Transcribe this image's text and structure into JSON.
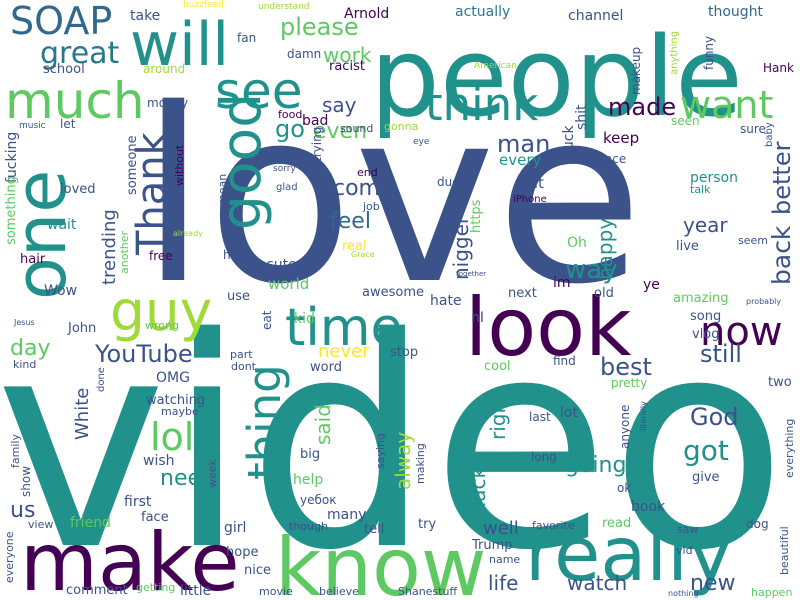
{
  "background": "#ffffff",
  "palette": {
    "purple": "#440154",
    "indigo": "#3b528b",
    "teal": "#21918c",
    "green": "#5ec962",
    "yellow": "#fde725"
  },
  "words": [
    {
      "text": "video",
      "weight": 100,
      "color": "#21918c"
    },
    {
      "text": "love",
      "weight": 92,
      "color": "#3b528b"
    },
    {
      "text": "people",
      "weight": 60,
      "color": "#21918c"
    },
    {
      "text": "make",
      "weight": 48,
      "color": "#440154"
    },
    {
      "text": "know",
      "weight": 46,
      "color": "#5ec962"
    },
    {
      "text": "really",
      "weight": 44,
      "color": "#21918c"
    },
    {
      "text": "look",
      "weight": 44,
      "color": "#440154"
    },
    {
      "text": "one",
      "weight": 42,
      "color": "#21918c"
    },
    {
      "text": "will",
      "weight": 38,
      "color": "#21918c"
    },
    {
      "text": "much",
      "weight": 36,
      "color": "#5ec962"
    },
    {
      "text": "time",
      "weight": 36,
      "color": "#21918c"
    },
    {
      "text": "good",
      "weight": 36,
      "color": "#21918c"
    },
    {
      "text": "see",
      "weight": 32,
      "color": "#21918c"
    },
    {
      "text": "guy",
      "weight": 32,
      "color": "#a0da39"
    },
    {
      "text": "now",
      "weight": 30,
      "color": "#440154"
    },
    {
      "text": "think",
      "weight": 28,
      "color": "#21918c"
    },
    {
      "text": "thing",
      "weight": 28,
      "color": "#21918c"
    },
    {
      "text": "Thank",
      "weight": 28,
      "color": "#3b528b"
    },
    {
      "text": "want",
      "weight": 26,
      "color": "#5ec962"
    },
    {
      "text": "SOAP",
      "weight": 24,
      "color": "#31688e"
    },
    {
      "text": "lol",
      "weight": 24,
      "color": "#5ec962"
    },
    {
      "text": "great",
      "weight": 20,
      "color": "#2a788e"
    },
    {
      "text": "back",
      "weight": 20,
      "color": "#3b528b"
    },
    {
      "text": "better",
      "weight": 20,
      "color": "#3b528b"
    },
    {
      "text": "YouTube",
      "weight": 18,
      "color": "#3b528b"
    },
    {
      "text": "best",
      "weight": 18,
      "color": "#3b528b"
    },
    {
      "text": "still",
      "weight": 18,
      "color": "#3b528b"
    },
    {
      "text": "way",
      "weight": 18,
      "color": "#21918c"
    },
    {
      "text": "please",
      "weight": 18,
      "color": "#5ec962"
    },
    {
      "text": "work",
      "weight": 16,
      "color": "#5ec962"
    },
    {
      "text": "feel",
      "weight": 18,
      "color": "#31688e"
    },
    {
      "text": "come",
      "weight": 18,
      "color": "#3b528b"
    },
    {
      "text": "made",
      "weight": 16,
      "color": "#440154"
    },
    {
      "text": "man",
      "weight": 16,
      "color": "#3b528b"
    },
    {
      "text": "go",
      "weight": 16,
      "color": "#21918c"
    },
    {
      "text": "say",
      "weight": 16,
      "color": "#3b528b"
    },
    {
      "text": "even",
      "weight": 16,
      "color": "#5ec962"
    },
    {
      "text": "God",
      "weight": 18,
      "color": "#3b528b"
    },
    {
      "text": "got",
      "weight": 20,
      "color": "#21918c"
    },
    {
      "text": "going",
      "weight": 18,
      "color": "#21918c"
    },
    {
      "text": "need",
      "weight": 18,
      "color": "#21918c"
    },
    {
      "text": "new",
      "weight": 18,
      "color": "#3b528b"
    },
    {
      "text": "life",
      "weight": 18,
      "color": "#3b528b"
    },
    {
      "text": "watch",
      "weight": 18,
      "color": "#3b528b"
    },
    {
      "text": "black",
      "weight": 16,
      "color": "#21918c"
    },
    {
      "text": "right",
      "weight": 16,
      "color": "#21918c"
    },
    {
      "text": "alway",
      "weight": 16,
      "color": "#a0da39"
    },
    {
      "text": "said",
      "weight": 16,
      "color": "#5ec962"
    },
    {
      "text": "nigger",
      "weight": 16,
      "color": "#3b528b"
    },
    {
      "text": "happy",
      "weight": 16,
      "color": "#21918c"
    },
    {
      "text": "year",
      "weight": 16,
      "color": "#3b528b"
    },
    {
      "text": "trending",
      "weight": 16,
      "color": "#3b528b"
    },
    {
      "text": "day",
      "weight": 16,
      "color": "#5ec962"
    },
    {
      "text": "us",
      "weight": 16,
      "color": "#3b528b"
    },
    {
      "text": "White",
      "weight": 14,
      "color": "#3b528b"
    },
    {
      "text": "well",
      "weight": 14,
      "color": "#3b528b"
    },
    {
      "text": "never",
      "weight": 14,
      "color": "#fde725"
    },
    {
      "text": "bad",
      "weight": 12,
      "color": "#440154"
    },
    {
      "text": "Arnold",
      "weight": 12,
      "color": "#440154"
    },
    {
      "text": "actually",
      "weight": 12,
      "color": "#2a788e"
    },
    {
      "text": "thought",
      "weight": 12,
      "color": "#31688e"
    },
    {
      "text": "channel",
      "weight": 12,
      "color": "#3b528b"
    },
    {
      "text": "makeup",
      "weight": 10,
      "color": "#3b528b"
    },
    {
      "text": "funny",
      "weight": 10,
      "color": "#3b528b"
    },
    {
      "text": "anything",
      "weight": 8,
      "color": "#a0da39"
    },
    {
      "text": "Hank",
      "weight": 9,
      "color": "#440154"
    },
    {
      "text": "take",
      "weight": 11,
      "color": "#3b528b"
    },
    {
      "text": "buzzfeed",
      "weight": 6,
      "color": "#fde725"
    },
    {
      "text": "understand",
      "weight": 7,
      "color": "#a0da39"
    },
    {
      "text": "fan",
      "weight": 9,
      "color": "#3b528b"
    },
    {
      "text": "damn",
      "weight": 9,
      "color": "#3b528b"
    },
    {
      "text": "racist",
      "weight": 10,
      "color": "#440154"
    },
    {
      "text": "American",
      "weight": 6,
      "color": "#a0da39"
    },
    {
      "text": "school",
      "weight": 10,
      "color": "#3b528b"
    },
    {
      "text": "around",
      "weight": 9,
      "color": "#a0da39"
    },
    {
      "text": "money",
      "weight": 9,
      "color": "#3b528b"
    },
    {
      "text": "music",
      "weight": 6,
      "color": "#3b528b"
    },
    {
      "text": "let",
      "weight": 9,
      "color": "#3b528b"
    },
    {
      "text": "fucking",
      "weight": 11,
      "color": "#3b528b"
    },
    {
      "text": "someone",
      "weight": 11,
      "color": "#3b528b"
    },
    {
      "text": "without",
      "weight": 8,
      "color": "#440154"
    },
    {
      "text": "loved",
      "weight": 10,
      "color": "#3b528b"
    },
    {
      "text": "something",
      "weight": 10,
      "color": "#5ec962"
    },
    {
      "text": "wait",
      "weight": 11,
      "color": "#21918c"
    },
    {
      "text": "hair",
      "weight": 10,
      "color": "#440154"
    },
    {
      "text": "Wow",
      "weight": 12,
      "color": "#3b528b"
    },
    {
      "text": "food",
      "weight": 9,
      "color": "#440154"
    },
    {
      "text": "sound",
      "weight": 9,
      "color": "#3b528b"
    },
    {
      "text": "gonna",
      "weight": 8,
      "color": "#a0da39"
    },
    {
      "text": "Hey",
      "weight": 12,
      "color": "#3b528b"
    },
    {
      "text": "trying",
      "weight": 9,
      "color": "#3b528b"
    },
    {
      "text": "shit",
      "weight": 11,
      "color": "#3b528b"
    },
    {
      "text": "fuck",
      "weight": 11,
      "color": "#3b528b"
    },
    {
      "text": "keep",
      "weight": 12,
      "color": "#440154"
    },
    {
      "text": "every",
      "weight": 12,
      "color": "#21918c"
    },
    {
      "text": "put",
      "weight": 12,
      "color": "#3b528b"
    },
    {
      "text": "person",
      "weight": 11,
      "color": "#21918c"
    },
    {
      "text": "talk",
      "weight": 9,
      "color": "#21918c"
    },
    {
      "text": "place",
      "weight": 10,
      "color": "#3b528b"
    },
    {
      "text": "seen",
      "weight": 9,
      "color": "#5ec962"
    },
    {
      "text": "sure",
      "weight": 9,
      "color": "#3b528b"
    },
    {
      "text": "eye",
      "weight": 7,
      "color": "#3b528b"
    },
    {
      "text": "baby",
      "weight": 8,
      "color": "#3b528b"
    },
    {
      "text": "sorry",
      "weight": 7,
      "color": "#3b528b"
    },
    {
      "text": "glad",
      "weight": 7,
      "color": "#3b528b"
    },
    {
      "text": "end",
      "weight": 9,
      "color": "#440154"
    },
    {
      "text": "job",
      "weight": 9,
      "color": "#3b528b"
    },
    {
      "text": "dude",
      "weight": 9,
      "color": "#3b528b"
    },
    {
      "text": "iPhone",
      "weight": 7,
      "color": "#440154"
    },
    {
      "text": "already",
      "weight": 6,
      "color": "#a0da39"
    },
    {
      "text": "free",
      "weight": 9,
      "color": "#440154"
    },
    {
      "text": "mean",
      "weight": 8,
      "color": "#3b528b"
    },
    {
      "text": "real",
      "weight": 11,
      "color": "#fde725"
    },
    {
      "text": "Grace",
      "weight": 6,
      "color": "#a0da39"
    },
    {
      "text": "https",
      "weight": 9,
      "color": "#5ec962"
    },
    {
      "text": "Oh",
      "weight": 12,
      "color": "#5ec962"
    },
    {
      "text": "hard",
      "weight": 10,
      "color": "#3b528b"
    },
    {
      "text": "another",
      "weight": 8,
      "color": "#5ec962"
    },
    {
      "text": "cute",
      "weight": 12,
      "color": "#3b528b"
    },
    {
      "text": "live",
      "weight": 11,
      "color": "#3b528b"
    },
    {
      "text": "seem",
      "weight": 9,
      "color": "#3b528b"
    },
    {
      "text": "together",
      "weight": 5,
      "color": "#3b528b"
    },
    {
      "text": "world",
      "weight": 13,
      "color": "#5ec962"
    },
    {
      "text": "awesome",
      "weight": 12,
      "color": "#3b528b"
    },
    {
      "text": "im",
      "weight": 11,
      "color": "#440154"
    },
    {
      "text": "ye",
      "weight": 12,
      "color": "#440154"
    },
    {
      "text": "amazing",
      "weight": 12,
      "color": "#5ec962"
    },
    {
      "text": "probably",
      "weight": 6,
      "color": "#3b528b"
    },
    {
      "text": "next",
      "weight": 11,
      "color": "#3b528b"
    },
    {
      "text": "old",
      "weight": 11,
      "color": "#3b528b"
    },
    {
      "text": "song",
      "weight": 11,
      "color": "#3b528b"
    },
    {
      "text": "vlog",
      "weight": 10,
      "color": "#3b528b"
    },
    {
      "text": "use",
      "weight": 11,
      "color": "#3b528b"
    },
    {
      "text": "eat",
      "weight": 9,
      "color": "#3b528b"
    },
    {
      "text": "kid",
      "weight": 11,
      "color": "#5ec962"
    },
    {
      "text": "hate",
      "weight": 11,
      "color": "#3b528b"
    },
    {
      "text": "nI",
      "weight": 11,
      "color": "#3b528b"
    },
    {
      "text": "Jesus",
      "weight": 6,
      "color": "#3b528b"
    },
    {
      "text": "John",
      "weight": 11,
      "color": "#3b528b"
    },
    {
      "text": "wrong",
      "weight": 9,
      "color": "#5ec962"
    },
    {
      "text": "OMG",
      "weight": 11,
      "color": "#3b528b"
    },
    {
      "text": "part",
      "weight": 9,
      "color": "#3b528b"
    },
    {
      "text": "dont",
      "weight": 9,
      "color": "#3b528b"
    },
    {
      "text": "word",
      "weight": 11,
      "color": "#3b528b"
    },
    {
      "text": "stop",
      "weight": 11,
      "color": "#3b528b"
    },
    {
      "text": "cool",
      "weight": 11,
      "color": "#5ec962"
    },
    {
      "text": "find",
      "weight": 10,
      "color": "#3b528b"
    },
    {
      "text": "two",
      "weight": 12,
      "color": "#3b528b"
    },
    {
      "text": "kind",
      "weight": 9,
      "color": "#3b528b"
    },
    {
      "text": "done",
      "weight": 8,
      "color": "#3b528b"
    },
    {
      "text": "watching",
      "weight": 11,
      "color": "#3b528b"
    },
    {
      "text": "maybe",
      "weight": 9,
      "color": "#3b528b"
    },
    {
      "text": "pretty",
      "weight": 9,
      "color": "#5ec962"
    },
    {
      "text": "lot",
      "weight": 11,
      "color": "#3b528b"
    },
    {
      "text": "last",
      "weight": 10,
      "color": "#3b528b"
    },
    {
      "text": "anyone",
      "weight": 10,
      "color": "#3b528b"
    },
    {
      "text": "literally",
      "weight": 6,
      "color": "#3b528b"
    },
    {
      "text": "wish",
      "weight": 12,
      "color": "#3b528b"
    },
    {
      "text": "family",
      "weight": 10,
      "color": "#3b528b"
    },
    {
      "text": "show",
      "weight": 10,
      "color": "#3b528b"
    },
    {
      "text": "week",
      "weight": 9,
      "color": "#3b528b"
    },
    {
      "text": "big",
      "weight": 11,
      "color": "#3b528b"
    },
    {
      "text": "saying",
      "weight": 9,
      "color": "#3b528b"
    },
    {
      "text": "making",
      "weight": 8,
      "color": "#3b528b"
    },
    {
      "text": "long",
      "weight": 10,
      "color": "#3b528b"
    },
    {
      "text": "everything",
      "weight": 9,
      "color": "#3b528b"
    },
    {
      "text": "help",
      "weight": 11,
      "color": "#5ec962"
    },
    {
      "text": "give",
      "weight": 11,
      "color": "#3b528b"
    },
    {
      "text": "first",
      "weight": 11,
      "color": "#3b528b"
    },
    {
      "text": "уебок",
      "weight": 9,
      "color": "#3b528b"
    },
    {
      "text": "ok",
      "weight": 10,
      "color": "#3b528b"
    },
    {
      "text": "book",
      "weight": 11,
      "color": "#3b528b"
    },
    {
      "text": "many",
      "weight": 11,
      "color": "#3b528b"
    },
    {
      "text": "face",
      "weight": 11,
      "color": "#3b528b"
    },
    {
      "text": "view",
      "weight": 10,
      "color": "#3b528b"
    },
    {
      "text": "friend",
      "weight": 11,
      "color": "#5ec962"
    },
    {
      "text": "girl",
      "weight": 11,
      "color": "#3b528b"
    },
    {
      "text": "though",
      "weight": 9,
      "color": "#3b528b"
    },
    {
      "text": "tell",
      "weight": 11,
      "color": "#3b528b"
    },
    {
      "text": "try",
      "weight": 11,
      "color": "#3b528b"
    },
    {
      "text": "favorite",
      "weight": 9,
      "color": "#3b528b"
    },
    {
      "text": "read",
      "weight": 11,
      "color": "#5ec962"
    },
    {
      "text": "saw",
      "weight": 9,
      "color": "#3b528b"
    },
    {
      "text": "dog",
      "weight": 10,
      "color": "#3b528b"
    },
    {
      "text": "beautiful",
      "weight": 9,
      "color": "#3b528b"
    },
    {
      "text": "everyone",
      "weight": 9,
      "color": "#3b528b"
    },
    {
      "text": "hope",
      "weight": 11,
      "color": "#3b528b"
    },
    {
      "text": "nice",
      "weight": 11,
      "color": "#3b528b"
    },
    {
      "text": "Trump",
      "weight": 11,
      "color": "#3b528b"
    },
    {
      "text": "name",
      "weight": 9,
      "color": "#3b528b"
    },
    {
      "text": "vid",
      "weight": 9,
      "color": "#3b528b"
    },
    {
      "text": "comment",
      "weight": 10,
      "color": "#3b528b"
    },
    {
      "text": "getting",
      "weight": 8,
      "color": "#5ec962"
    },
    {
      "text": "little",
      "weight": 11,
      "color": "#3b528b"
    },
    {
      "text": "movie",
      "weight": 9,
      "color": "#3b528b"
    },
    {
      "text": "believe",
      "weight": 9,
      "color": "#3b528b"
    },
    {
      "text": "Shanestuff",
      "weight": 9,
      "color": "#3b528b"
    },
    {
      "text": "nothing",
      "weight": 6,
      "color": "#3b528b"
    },
    {
      "text": "happen",
      "weight": 9,
      "color": "#5ec962"
    }
  ]
}
